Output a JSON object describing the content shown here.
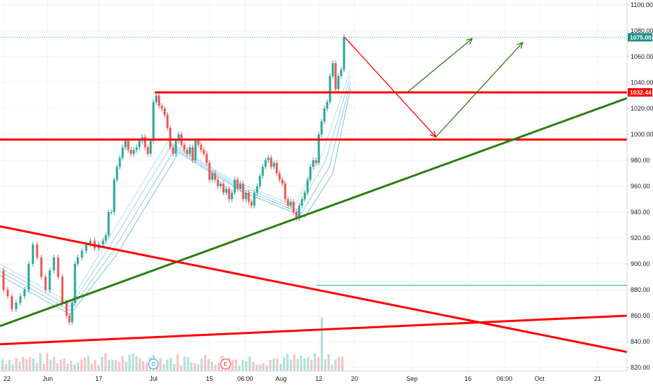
{
  "chart_data": {
    "type": "candlestick",
    "ylim": [
      815,
      1105
    ],
    "y_ticks": [
      "1100.00",
      "1080.00",
      "1060.00",
      "1040.00",
      "1020.00",
      "1000.00",
      "980.00",
      "960.00",
      "940.00",
      "920.00",
      "900.00",
      "880.00",
      "860.00",
      "840.00",
      "820.00"
    ],
    "x_ticks": [
      "22",
      "Jun",
      "17",
      "Jul",
      "15",
      "06:00",
      "Aug",
      "12",
      "20",
      "Sep",
      "16",
      "06:00",
      "Oct",
      "21"
    ],
    "price_labels": [
      {
        "value": 1075.0,
        "text": "1075.00",
        "color": "#1e9088"
      },
      {
        "value": 1032.44,
        "text": "1032.44",
        "color": "#ff0000"
      }
    ],
    "horizontal_levels": [
      {
        "value": 1032.44,
        "color": "#ff0000"
      },
      {
        "value": 996,
        "color": "#ff0000"
      },
      {
        "value": 1075.0,
        "color": "#26a69a",
        "style": "dotted"
      },
      {
        "value": 883.5,
        "color": "#26a69a"
      }
    ],
    "events": [
      {
        "letter": "D",
        "color": "#2196f3"
      },
      {
        "letter": "E",
        "color": "#f44336"
      }
    ],
    "price_path": [
      [
        0,
        895
      ],
      [
        6,
        880
      ],
      [
        12,
        875
      ],
      [
        18,
        865
      ],
      [
        24,
        870
      ],
      [
        30,
        875
      ],
      [
        36,
        880
      ],
      [
        42,
        900
      ],
      [
        48,
        915
      ],
      [
        54,
        905
      ],
      [
        60,
        890
      ],
      [
        66,
        880
      ],
      [
        72,
        895
      ],
      [
        78,
        905
      ],
      [
        84,
        890
      ],
      [
        90,
        870
      ],
      [
        96,
        860
      ],
      [
        100,
        855
      ],
      [
        104,
        870
      ],
      [
        108,
        900
      ],
      [
        112,
        905
      ],
      [
        118,
        910
      ],
      [
        124,
        915
      ],
      [
        130,
        918
      ],
      [
        136,
        912
      ],
      [
        142,
        915
      ],
      [
        148,
        918
      ],
      [
        152,
        922
      ],
      [
        156,
        940
      ],
      [
        160,
        940
      ],
      [
        164,
        965
      ],
      [
        168,
        975
      ],
      [
        172,
        982
      ],
      [
        176,
        990
      ],
      [
        180,
        995
      ],
      [
        184,
        988
      ],
      [
        188,
        985
      ],
      [
        192,
        988
      ],
      [
        196,
        990
      ],
      [
        200,
        995
      ],
      [
        204,
        998
      ],
      [
        208,
        990
      ],
      [
        212,
        985
      ],
      [
        216,
        995
      ],
      [
        220,
        1025
      ],
      [
        224,
        1030
      ],
      [
        228,
        1022
      ],
      [
        232,
        1020
      ],
      [
        236,
        1015
      ],
      [
        240,
        1005
      ],
      [
        244,
        990
      ],
      [
        248,
        985
      ],
      [
        252,
        995
      ],
      [
        256,
        1000
      ],
      [
        260,
        992
      ],
      [
        264,
        988
      ],
      [
        268,
        985
      ],
      [
        272,
        990
      ],
      [
        276,
        980
      ],
      [
        280,
        995
      ],
      [
        284,
        992
      ],
      [
        288,
        988
      ],
      [
        292,
        985
      ],
      [
        296,
        978
      ],
      [
        300,
        965
      ],
      [
        304,
        970
      ],
      [
        308,
        965
      ],
      [
        312,
        960
      ],
      [
        316,
        962
      ],
      [
        320,
        955
      ],
      [
        324,
        958
      ],
      [
        328,
        950
      ],
      [
        332,
        955
      ],
      [
        336,
        965
      ],
      [
        340,
        958
      ],
      [
        344,
        962
      ],
      [
        348,
        950
      ],
      [
        352,
        955
      ],
      [
        356,
        948
      ],
      [
        360,
        945
      ],
      [
        364,
        955
      ],
      [
        368,
        960
      ],
      [
        372,
        968
      ],
      [
        376,
        975
      ],
      [
        380,
        980
      ],
      [
        384,
        982
      ],
      [
        388,
        975
      ],
      [
        392,
        978
      ],
      [
        396,
        970
      ],
      [
        400,
        965
      ],
      [
        404,
        962
      ],
      [
        408,
        950
      ],
      [
        412,
        945
      ],
      [
        416,
        948
      ],
      [
        420,
        940
      ],
      [
        424,
        935
      ],
      [
        428,
        945
      ],
      [
        432,
        950
      ],
      [
        436,
        955
      ],
      [
        440,
        965
      ],
      [
        444,
        975
      ],
      [
        448,
        980
      ],
      [
        452,
        978
      ],
      [
        456,
        1000
      ],
      [
        460,
        1010
      ],
      [
        464,
        1020
      ],
      [
        468,
        1025
      ],
      [
        472,
        1045
      ],
      [
        476,
        1055
      ],
      [
        480,
        1035
      ],
      [
        484,
        1045
      ],
      [
        488,
        1050
      ],
      [
        492,
        1075
      ]
    ],
    "ribbon": [
      [
        [
          0,
          900
        ],
        [
          100,
          870
        ],
        [
          150,
          915
        ],
        [
          240,
          995
        ],
        [
          330,
          965
        ],
        [
          420,
          945
        ],
        [
          460,
          985
        ],
        [
          500,
          1050
        ]
      ],
      [
        [
          0,
          897
        ],
        [
          100,
          867
        ],
        [
          155,
          912
        ],
        [
          245,
          992
        ],
        [
          335,
          962
        ],
        [
          425,
          942
        ],
        [
          465,
          980
        ],
        [
          500,
          1045
        ]
      ],
      [
        [
          0,
          894
        ],
        [
          100,
          864
        ],
        [
          160,
          909
        ],
        [
          250,
          989
        ],
        [
          340,
          959
        ],
        [
          430,
          939
        ],
        [
          470,
          975
        ],
        [
          500,
          1040
        ]
      ],
      [
        [
          0,
          891
        ],
        [
          100,
          861
        ],
        [
          165,
          906
        ],
        [
          255,
          986
        ],
        [
          345,
          956
        ],
        [
          435,
          936
        ],
        [
          475,
          970
        ],
        [
          500,
          1035
        ]
      ]
    ],
    "volume_count": 100,
    "trendlines": [
      {
        "color": "#2e7d14",
        "width": 3,
        "points": [
          [
            0,
            852
          ],
          [
            895,
            1028
          ]
        ]
      },
      {
        "color": "#ff0000",
        "width": 3,
        "points": [
          [
            0,
            929
          ],
          [
            895,
            832
          ]
        ]
      },
      {
        "color": "#ff0000",
        "width": 3,
        "points": [
          [
            0,
            838
          ],
          [
            895,
            860
          ]
        ]
      }
    ],
    "projections": [
      {
        "color": "#ff0000",
        "points": [
          [
            492,
            1075
          ],
          [
            622,
            998
          ]
        ]
      },
      {
        "color": "#2e7d14",
        "points": [
          [
            580,
            1032
          ],
          [
            674,
            1074
          ]
        ]
      },
      {
        "color": "#2e7d14",
        "points": [
          [
            622,
            998
          ],
          [
            746,
            1071
          ]
        ]
      }
    ]
  }
}
